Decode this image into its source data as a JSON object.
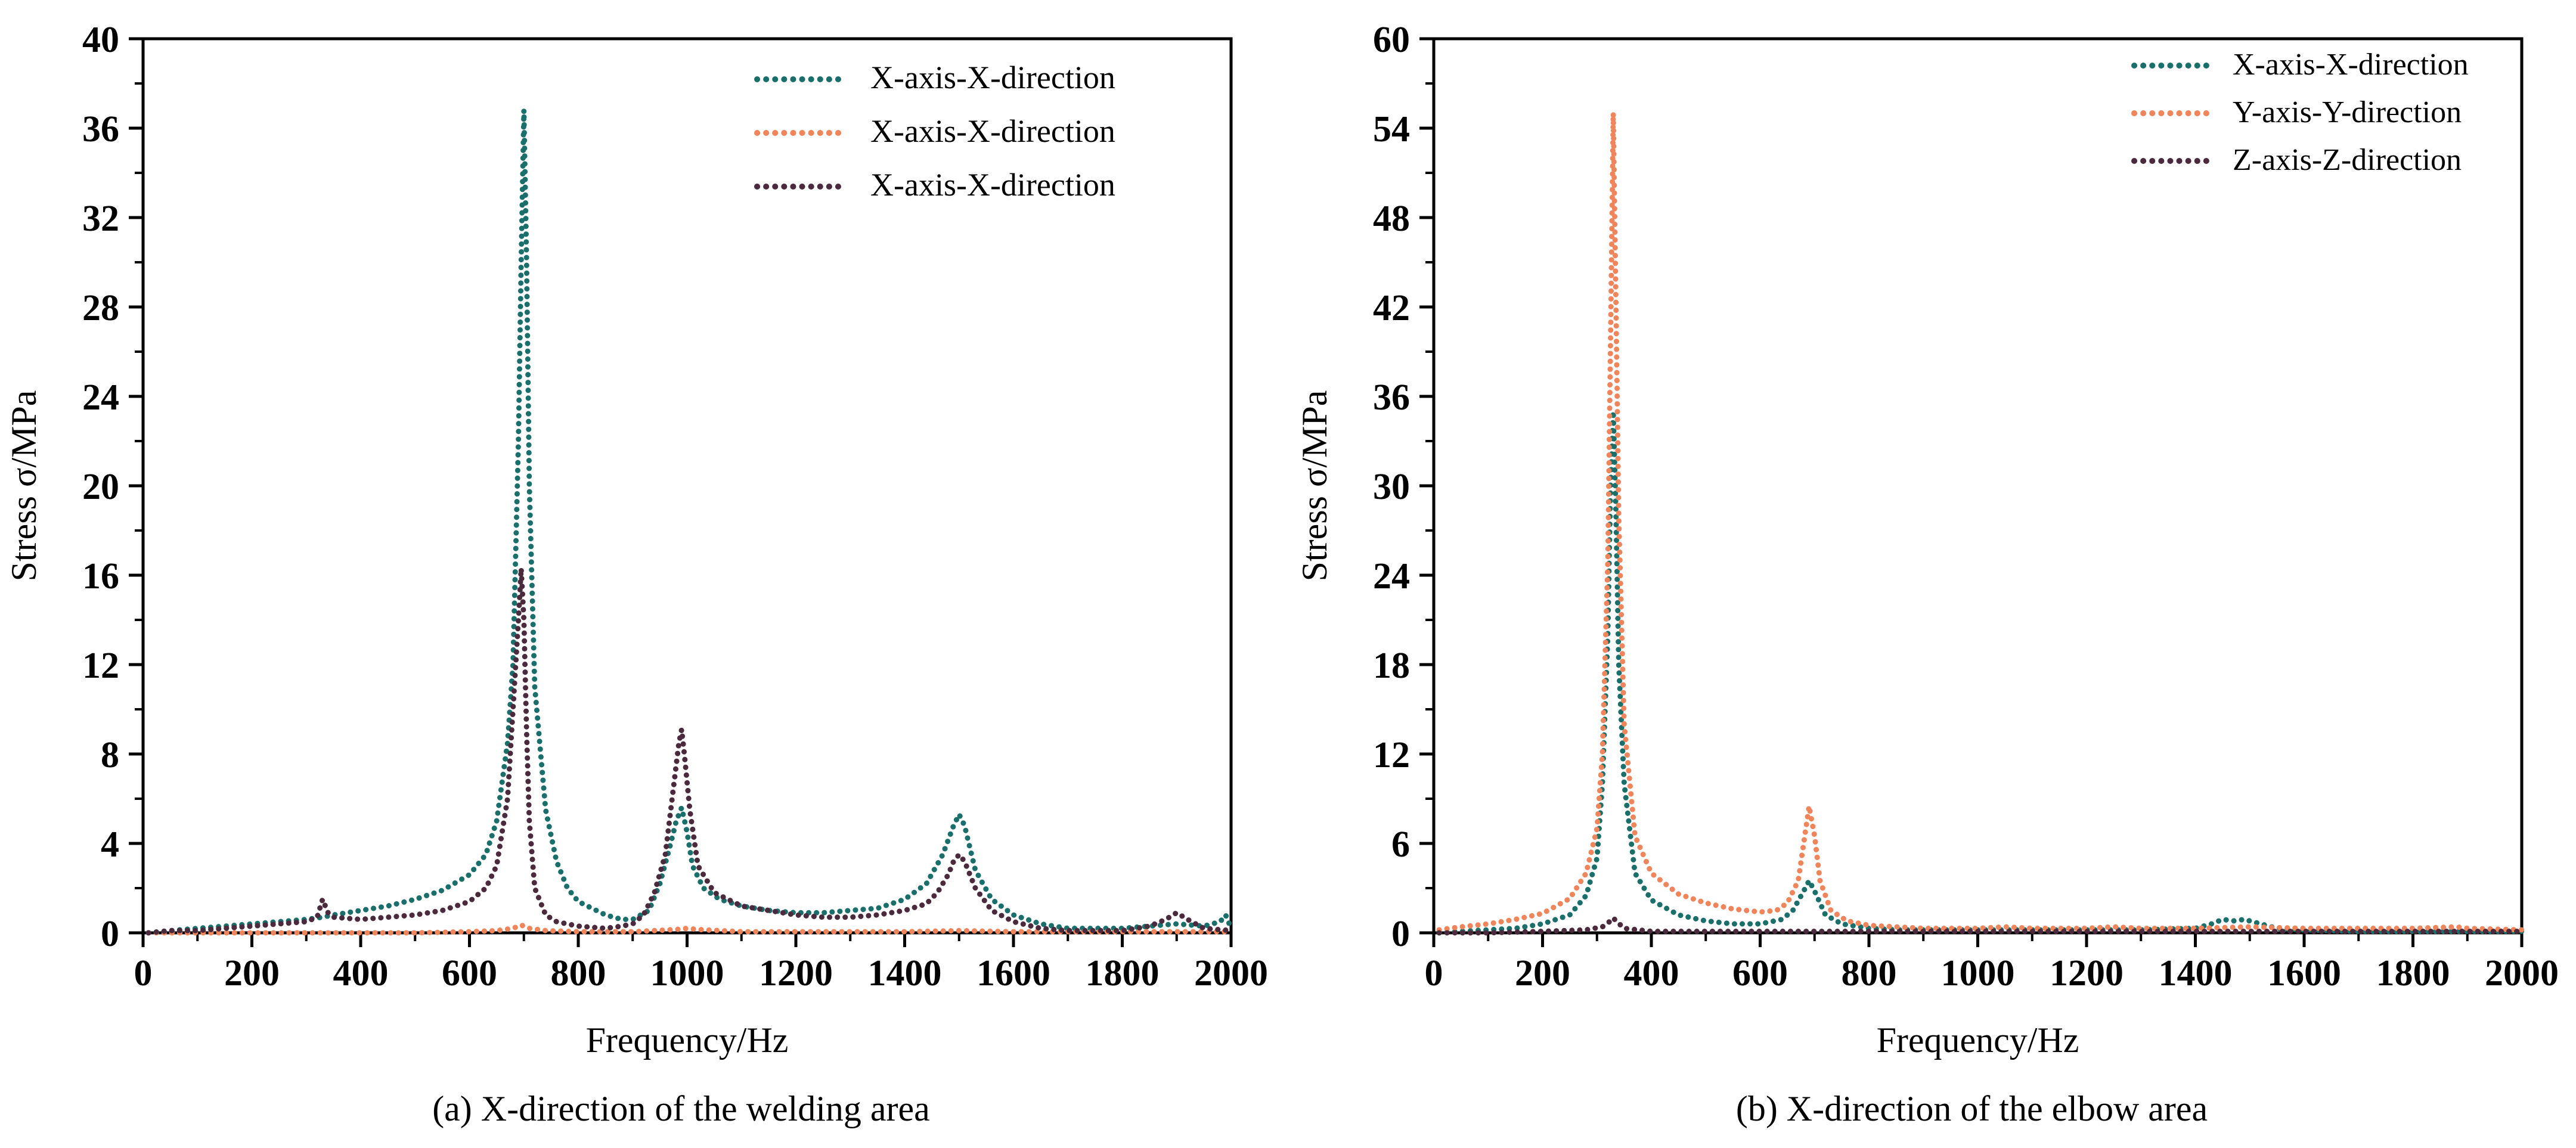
{
  "colors": {
    "teal": "#1a6f6a",
    "orange": "#f0845a",
    "dark": "#4a2a3c",
    "axis": "#000000"
  },
  "chart_data": [
    {
      "type": "line",
      "caption": "(a) X-direction of the welding area",
      "xlabel": "Frequency/Hz",
      "ylabel": "Stress σ/MPa",
      "xlim": [
        0,
        2000
      ],
      "ylim": [
        0,
        40
      ],
      "xticks": [
        0,
        200,
        400,
        600,
        800,
        1000,
        1200,
        1400,
        1600,
        1800,
        2000
      ],
      "yticks": [
        0,
        4,
        8,
        12,
        16,
        20,
        24,
        28,
        32,
        36,
        40
      ],
      "legend_position": "top-right",
      "line_style": "dotted",
      "series": [
        {
          "name": "X-axis-X-direction",
          "color": "#1a6f6a",
          "x": [
            10,
            50,
            100,
            150,
            200,
            250,
            300,
            330,
            350,
            400,
            450,
            500,
            550,
            600,
            630,
            650,
            670,
            680,
            690,
            695,
            700,
            705,
            710,
            720,
            740,
            760,
            780,
            800,
            850,
            880,
            900,
            930,
            950,
            970,
            980,
            990,
            1000,
            1010,
            1030,
            1060,
            1100,
            1150,
            1200,
            1250,
            1300,
            1350,
            1400,
            1440,
            1470,
            1490,
            1500,
            1510,
            1530,
            1560,
            1600,
            1650,
            1700,
            1750,
            1800,
            1850,
            1900,
            1950,
            1980,
            1990,
            2000
          ],
          "y": [
            0.0,
            0.1,
            0.2,
            0.3,
            0.4,
            0.5,
            0.6,
            0.7,
            0.8,
            1.0,
            1.2,
            1.5,
            1.9,
            2.6,
            3.5,
            5.0,
            8.5,
            12,
            22,
            30,
            36.8,
            30,
            20,
            11,
            5.5,
            3.2,
            2.0,
            1.4,
            0.8,
            0.6,
            0.6,
            1.0,
            2.2,
            4.0,
            5.0,
            5.6,
            4.5,
            3.0,
            2.0,
            1.5,
            1.2,
            1.0,
            0.9,
            0.9,
            1.0,
            1.1,
            1.5,
            2.2,
            3.5,
            4.8,
            5.3,
            4.8,
            2.8,
            1.5,
            0.8,
            0.4,
            0.2,
            0.2,
            0.2,
            0.3,
            0.4,
            0.3,
            0.5,
            0.8,
            0.2
          ]
        },
        {
          "name": "X-axis-X-direction",
          "color": "#f0845a",
          "x": [
            10,
            100,
            200,
            300,
            400,
            500,
            600,
            650,
            680,
            695,
            710,
            740,
            800,
            900,
            980,
            1000,
            1020,
            1100,
            1200,
            1300,
            1400,
            1500,
            1600,
            1700,
            1800,
            1900,
            2000
          ],
          "y": [
            0.0,
            0.0,
            0.0,
            0.0,
            0.0,
            0.0,
            0.05,
            0.1,
            0.2,
            0.35,
            0.2,
            0.1,
            0.05,
            0.05,
            0.15,
            0.2,
            0.15,
            0.05,
            0.05,
            0.05,
            0.05,
            0.1,
            0.05,
            0.05,
            0.05,
            0.05,
            0.05
          ]
        },
        {
          "name": "X-axis-X-direction",
          "color": "#4a2a3c",
          "x": [
            10,
            50,
            100,
            150,
            200,
            250,
            300,
            320,
            330,
            340,
            350,
            400,
            450,
            500,
            550,
            600,
            630,
            650,
            670,
            680,
            690,
            695,
            700,
            705,
            710,
            720,
            740,
            760,
            800,
            850,
            880,
            900,
            920,
            940,
            960,
            975,
            985,
            990,
            995,
            1005,
            1020,
            1050,
            1100,
            1150,
            1200,
            1250,
            1300,
            1350,
            1400,
            1440,
            1460,
            1480,
            1490,
            1500,
            1510,
            1530,
            1560,
            1600,
            1650,
            1700,
            1750,
            1800,
            1850,
            1880,
            1900,
            1920,
            1950,
            2000
          ],
          "y": [
            0.0,
            0.1,
            0.1,
            0.2,
            0.3,
            0.4,
            0.5,
            0.7,
            1.5,
            0.9,
            0.7,
            0.6,
            0.7,
            0.8,
            1.0,
            1.4,
            2.0,
            3.0,
            6.0,
            10,
            14,
            16.3,
            14,
            9,
            5,
            2.0,
            0.8,
            0.5,
            0.3,
            0.2,
            0.3,
            0.4,
            0.8,
            1.8,
            3.5,
            6.5,
            8.5,
            9.1,
            8.0,
            5.5,
            3.0,
            1.8,
            1.2,
            1.0,
            0.8,
            0.7,
            0.7,
            0.8,
            1.0,
            1.3,
            1.8,
            2.6,
            3.2,
            3.5,
            3.2,
            2.0,
            1.0,
            0.5,
            0.2,
            0.1,
            0.1,
            0.1,
            0.3,
            0.6,
            0.9,
            0.6,
            0.2,
            0.1
          ]
        }
      ]
    },
    {
      "type": "line",
      "caption": "(b) X-direction of the elbow area",
      "xlabel": "Frequency/Hz",
      "ylabel": "Stress σ/MPa",
      "xlim": [
        0,
        2000
      ],
      "ylim": [
        0,
        60
      ],
      "xticks": [
        0,
        200,
        400,
        600,
        800,
        1000,
        1200,
        1400,
        1600,
        1800,
        2000
      ],
      "yticks": [
        0,
        6,
        12,
        18,
        24,
        30,
        36,
        42,
        48,
        54,
        60
      ],
      "legend_position": "top-right",
      "line_style": "dotted",
      "series": [
        {
          "name": "X-axis-X-direction",
          "color": "#1a6f6a",
          "x": [
            10,
            50,
            100,
            150,
            200,
            250,
            280,
            300,
            310,
            320,
            325,
            330,
            335,
            340,
            350,
            370,
            400,
            450,
            500,
            550,
            600,
            640,
            660,
            680,
            690,
            700,
            720,
            750,
            800,
            850,
            900,
            1000,
            1100,
            1200,
            1300,
            1400,
            1430,
            1450,
            1470,
            1490,
            1510,
            1550,
            1600,
            1700,
            1800,
            1900,
            2000
          ],
          "y": [
            0.0,
            0.1,
            0.2,
            0.3,
            0.6,
            1.2,
            2.5,
            5.0,
            10,
            20,
            30,
            35,
            28,
            18,
            10,
            4.0,
            2.2,
            1.2,
            0.8,
            0.6,
            0.6,
            0.9,
            1.5,
            2.8,
            3.5,
            2.8,
            1.2,
            0.6,
            0.3,
            0.2,
            0.2,
            0.2,
            0.2,
            0.2,
            0.2,
            0.3,
            0.6,
            0.9,
            0.8,
            0.9,
            0.7,
            0.3,
            0.2,
            0.1,
            0.1,
            0.1,
            0.1
          ]
        },
        {
          "name": "Y-axis-Y-direction",
          "color": "#f0845a",
          "x": [
            10,
            50,
            100,
            150,
            200,
            250,
            280,
            300,
            310,
            320,
            325,
            330,
            335,
            340,
            350,
            370,
            400,
            450,
            500,
            550,
            600,
            630,
            650,
            670,
            680,
            690,
            700,
            710,
            730,
            760,
            800,
            850,
            900,
            1000,
            1050,
            1100,
            1200,
            1250,
            1300,
            1400,
            1500,
            1600,
            1700,
            1800,
            1880,
            1900,
            2000
          ],
          "y": [
            0.2,
            0.4,
            0.6,
            0.9,
            1.3,
            2.3,
            4.0,
            7.0,
            12,
            25,
            40,
            55,
            42,
            28,
            14,
            6.5,
            4.0,
            2.6,
            2.0,
            1.6,
            1.4,
            1.5,
            2.0,
            3.5,
            6.0,
            8.5,
            6.5,
            3.5,
            1.5,
            0.8,
            0.5,
            0.4,
            0.3,
            0.3,
            0.4,
            0.3,
            0.3,
            0.4,
            0.3,
            0.3,
            0.4,
            0.3,
            0.3,
            0.3,
            0.4,
            0.3,
            0.2
          ]
        },
        {
          "name": "Z-axis-Z-direction",
          "color": "#4a2a3c",
          "x": [
            10,
            100,
            200,
            280,
            310,
            325,
            330,
            335,
            350,
            400,
            500,
            600,
            700,
            800,
            900,
            1000,
            1100,
            1200,
            1300,
            1400,
            1500,
            1600,
            1700,
            1800,
            1900,
            2000
          ],
          "y": [
            0.0,
            0.0,
            0.1,
            0.2,
            0.4,
            0.8,
            1.0,
            0.8,
            0.3,
            0.1,
            0.1,
            0.1,
            0.1,
            0.1,
            0.1,
            0.1,
            0.1,
            0.1,
            0.1,
            0.1,
            0.1,
            0.1,
            0.1,
            0.1,
            0.1,
            0.1
          ]
        }
      ]
    }
  ]
}
